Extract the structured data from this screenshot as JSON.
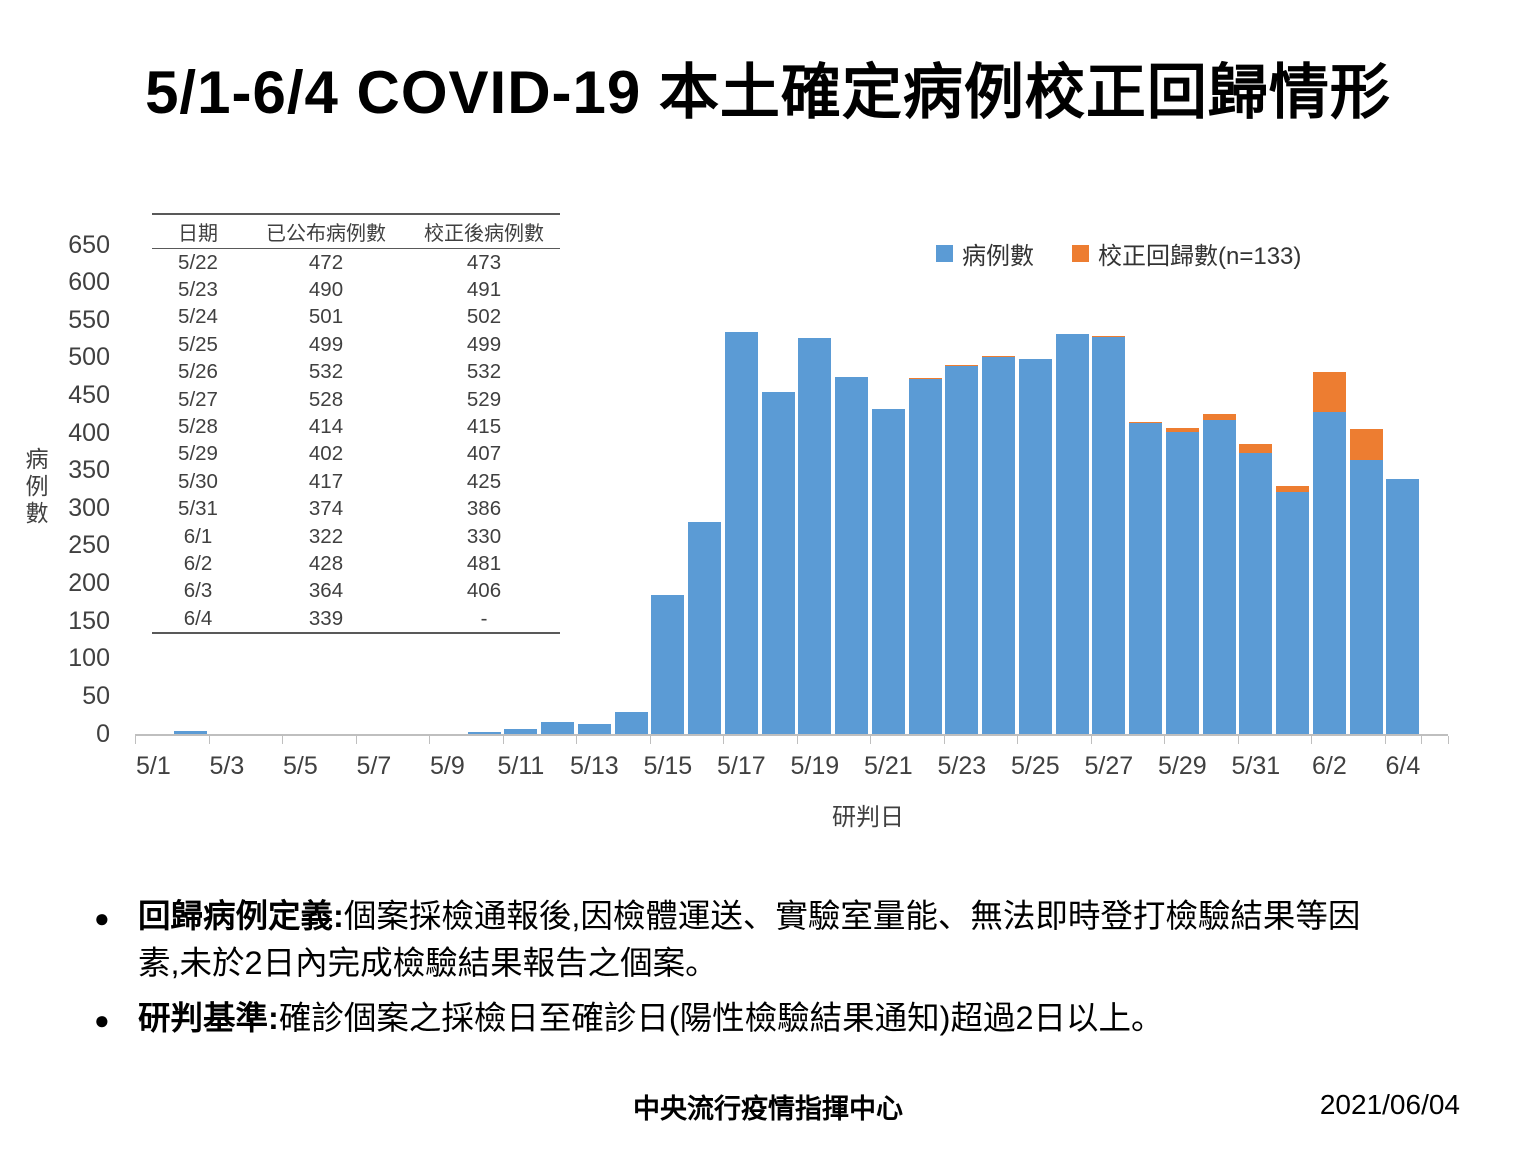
{
  "title": "5/1-6/4 COVID-19 本土確定病例校正回歸情形",
  "chart_data": {
    "type": "bar",
    "stacked": true,
    "xlabel": "研判日",
    "ylabel": "病例數",
    "ylim": [
      0,
      650
    ],
    "yticks": [
      0,
      50,
      100,
      150,
      200,
      250,
      300,
      350,
      400,
      450,
      500,
      550,
      600,
      650
    ],
    "grid": false,
    "legend_position": "top-right",
    "categories": [
      "5/1",
      "5/2",
      "5/3",
      "5/4",
      "5/5",
      "5/6",
      "5/7",
      "5/8",
      "5/9",
      "5/10",
      "5/11",
      "5/12",
      "5/13",
      "5/14",
      "5/15",
      "5/16",
      "5/17",
      "5/18",
      "5/19",
      "5/20",
      "5/21",
      "5/22",
      "5/23",
      "5/24",
      "5/25",
      "5/26",
      "5/27",
      "5/28",
      "5/29",
      "5/30",
      "5/31",
      "6/1",
      "6/2",
      "6/3",
      "6/4"
    ],
    "xtick_labels": [
      "5/1",
      "5/3",
      "5/5",
      "5/7",
      "5/9",
      "5/11",
      "5/13",
      "5/15",
      "5/17",
      "5/19",
      "5/21",
      "5/23",
      "5/25",
      "5/27",
      "5/29",
      "5/31",
      "6/2",
      "6/4"
    ],
    "series": [
      {
        "name": "病例數",
        "color": "#5B9BD5",
        "values": [
          0,
          4,
          0,
          0,
          0,
          0,
          0,
          0,
          0,
          3,
          7,
          16,
          13,
          29,
          185,
          282,
          535,
          455,
          527,
          474,
          432,
          472,
          490,
          501,
          499,
          532,
          528,
          414,
          402,
          417,
          374,
          322,
          428,
          364,
          339
        ]
      },
      {
        "name": "校正回歸數(n=133)",
        "color": "#ED7D31",
        "values": [
          0,
          0,
          0,
          0,
          0,
          0,
          0,
          0,
          0,
          0,
          0,
          0,
          0,
          0,
          0,
          0,
          0,
          0,
          0,
          0,
          0,
          1,
          1,
          1,
          0,
          0,
          1,
          1,
          5,
          8,
          12,
          8,
          53,
          42,
          0
        ]
      }
    ]
  },
  "inset_table": {
    "columns": [
      "日期",
      "已公布病例數",
      "校正後病例數"
    ],
    "rows": [
      [
        "5/22",
        "472",
        "473"
      ],
      [
        "5/23",
        "490",
        "491"
      ],
      [
        "5/24",
        "501",
        "502"
      ],
      [
        "5/25",
        "499",
        "499"
      ],
      [
        "5/26",
        "532",
        "532"
      ],
      [
        "5/27",
        "528",
        "529"
      ],
      [
        "5/28",
        "414",
        "415"
      ],
      [
        "5/29",
        "402",
        "407"
      ],
      [
        "5/30",
        "417",
        "425"
      ],
      [
        "5/31",
        "374",
        "386"
      ],
      [
        "6/1",
        "322",
        "330"
      ],
      [
        "6/2",
        "428",
        "481"
      ],
      [
        "6/3",
        "364",
        "406"
      ],
      [
        "6/4",
        "339",
        "-"
      ]
    ]
  },
  "notes": [
    {
      "label": "回歸病例定義:",
      "text": "個案採檢通報後,因檢體運送、實驗室量能、無法即時登打檢驗結果等因素,未於2日內完成檢驗結果報告之個案。"
    },
    {
      "label": "研判基準:",
      "text": "確診個案之採檢日至確診日(陽性檢驗結果通知)超過2日以上。"
    }
  ],
  "footer": {
    "org": "中央流行疫情指揮中心",
    "date": "2021/06/04"
  },
  "colors": {
    "cases_blue": "#5B9BD5",
    "correction_orange": "#ED7D31",
    "axis_line": "#BFBFBF",
    "axis_text": "#404040"
  }
}
